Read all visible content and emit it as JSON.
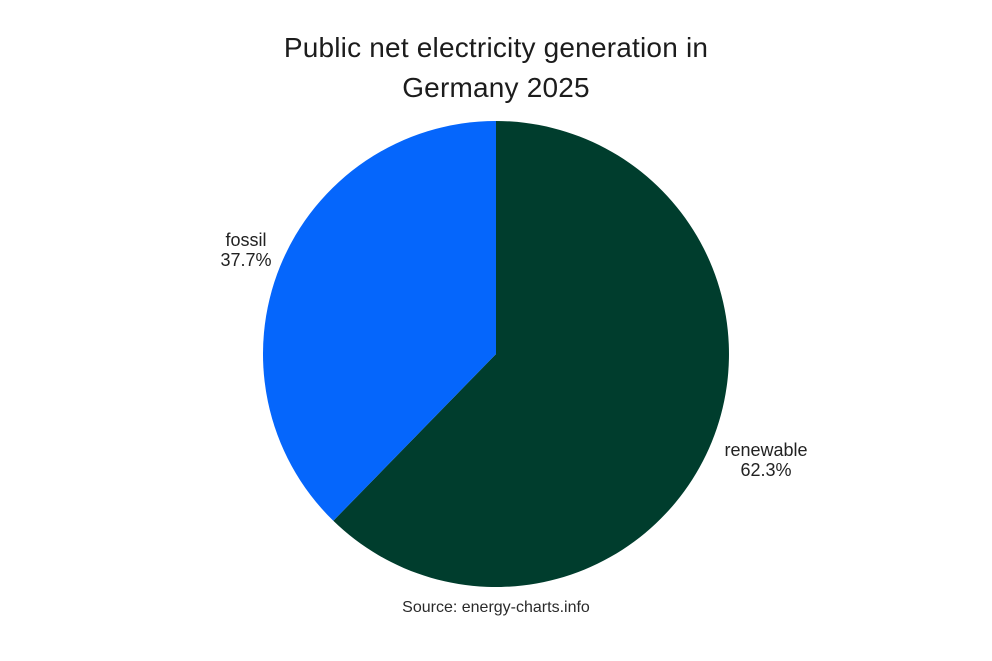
{
  "header": {
    "title_line1": "Public net electricity generation in",
    "title_line2": "Germany 2025"
  },
  "footer": {
    "source": "Source: energy-charts.info"
  },
  "colors": {
    "background": "#ffffff",
    "text": "#1c1c1c",
    "renewable": "#003d2d",
    "fossil": "#0566fc"
  },
  "chart_data": {
    "type": "pie",
    "title": "Public net electricity generation in Germany 2025",
    "source": "Source: energy-charts.info",
    "start_angle": "top",
    "direction": "clockwise",
    "legend_position": "none",
    "labels_position": "outside",
    "slices": [
      {
        "label": "renewable",
        "value": 62.3,
        "pct_label": "62.3%",
        "color": "#003d2d"
      },
      {
        "label": "fossil",
        "value": 37.7,
        "pct_label": "37.7%",
        "color": "#0566fc"
      }
    ]
  }
}
